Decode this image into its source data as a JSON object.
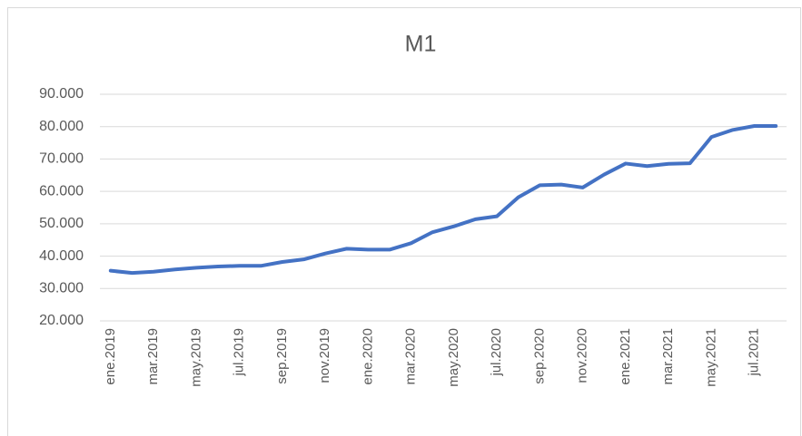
{
  "chart_data": {
    "type": "line",
    "title": "M1",
    "categories": [
      "ene.2019",
      null,
      "mar.2019",
      null,
      "may.2019",
      null,
      "jul.2019",
      null,
      "sep.2019",
      null,
      "nov.2019",
      null,
      "ene.2020",
      null,
      "mar.2020",
      null,
      "may.2020",
      null,
      "jul.2020",
      null,
      "sep.2020",
      null,
      "nov.2020",
      null,
      "ene.2021",
      null,
      "mar.2021",
      null,
      "may.2021",
      null,
      "jul.2021",
      null
    ],
    "series": [
      {
        "name": "M1",
        "color": "#4472c4",
        "values": [
          35500,
          34800,
          35200,
          35900,
          36400,
          36800,
          37000,
          37000,
          38200,
          39000,
          40800,
          42300,
          42000,
          42000,
          44000,
          47400,
          49200,
          51400,
          52300,
          58200,
          61900,
          62100,
          61200,
          65200,
          68600,
          67800,
          68500,
          68700,
          76800,
          79000,
          80200,
          80200
        ]
      }
    ],
    "ylim": [
      20000,
      90000
    ],
    "yticks": [
      {
        "value": 20000,
        "label": "20.000"
      },
      {
        "value": 30000,
        "label": "30.000"
      },
      {
        "value": 40000,
        "label": "40.000"
      },
      {
        "value": 50000,
        "label": "50.000"
      },
      {
        "value": 60000,
        "label": "60.000"
      },
      {
        "value": 70000,
        "label": "70.000"
      },
      {
        "value": 80000,
        "label": "80.000"
      },
      {
        "value": 90000,
        "label": "90.000"
      }
    ],
    "grid": true
  }
}
